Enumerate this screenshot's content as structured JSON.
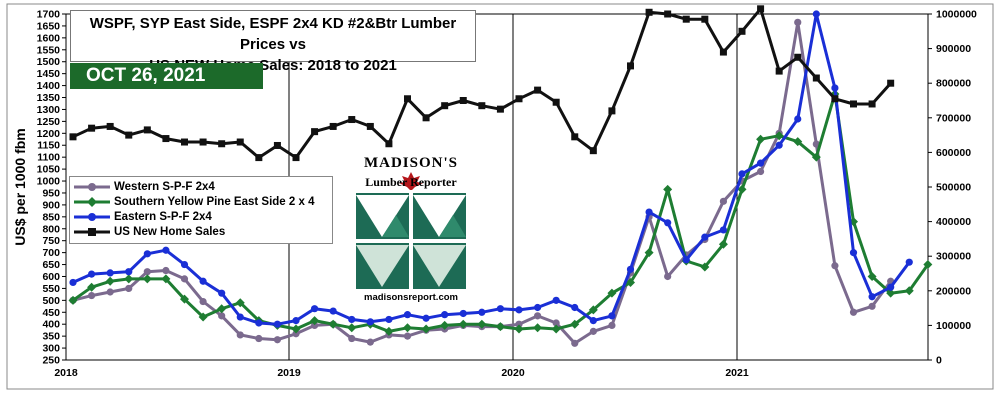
{
  "chart_data": {
    "type": "line",
    "title_line1": "WSPF, SYP East Side, ESPF 2x4 KD #2&Btr Lumber Prices vs",
    "title_line2": "US NEW Home Sales: 2018 to 2021",
    "date_label": "OCT 26, 2021",
    "ylabel": "US$ per 1000 fbm",
    "ylim": [
      250,
      1700
    ],
    "y2lim": [
      0,
      1000000
    ],
    "yticks": [
      "250",
      "300",
      "350",
      "400",
      "450",
      "500",
      "550",
      "600",
      "650",
      "700",
      "750",
      "800",
      "850",
      "900",
      "950",
      "1000",
      "1050",
      "1100",
      "1150",
      "1200",
      "1250",
      "1300",
      "1350",
      "1400",
      "1450",
      "1500",
      "1550",
      "1600",
      "1650",
      "1700"
    ],
    "y2ticks": [
      "0",
      "100000",
      "200000",
      "300000",
      "400000",
      "500000",
      "600000",
      "700000",
      "800000",
      "900000",
      "1000000"
    ],
    "xticks": [
      "2018",
      "2019",
      "2020",
      "2021"
    ],
    "grid": "vertical at year boundaries",
    "legend_placement": "left-middle",
    "series": [
      {
        "name": "Western S-P-F 2x4",
        "color": "#7b6a8e",
        "axis": "left",
        "values": [
          500,
          520,
          535,
          550,
          620,
          625,
          590,
          495,
          435,
          355,
          340,
          335,
          360,
          395,
          400,
          340,
          325,
          355,
          350,
          375,
          380,
          395,
          390,
          390,
          400,
          435,
          405,
          320,
          370,
          395,
          615,
          850,
          600,
          690,
          755,
          915,
          1000,
          1040,
          1200,
          1665,
          1155,
          645,
          450,
          475,
          580
        ]
      },
      {
        "name": "Southern Yellow Pine East Side 2 x 4",
        "color": "#1e7d32",
        "axis": "left",
        "values": [
          500,
          555,
          580,
          590,
          590,
          590,
          505,
          430,
          465,
          490,
          415,
          395,
          380,
          415,
          400,
          385,
          400,
          370,
          385,
          380,
          395,
          400,
          400,
          390,
          380,
          385,
          380,
          400,
          460,
          530,
          575,
          700,
          965,
          665,
          640,
          735,
          965,
          1175,
          1190,
          1165,
          1100,
          1365,
          830,
          600,
          530,
          540,
          650
        ]
      },
      {
        "name": "Eastern  S-P-F 2x4",
        "color": "#1a2fd6",
        "axis": "left",
        "values": [
          575,
          610,
          615,
          620,
          695,
          710,
          650,
          580,
          530,
          430,
          405,
          400,
          415,
          465,
          455,
          420,
          410,
          420,
          440,
          425,
          440,
          445,
          450,
          465,
          460,
          470,
          500,
          470,
          415,
          435,
          630,
          870,
          825,
          670,
          765,
          795,
          1030,
          1075,
          1150,
          1260,
          1700,
          1390,
          700,
          515,
          555,
          660
        ]
      },
      {
        "name": "US New Home Sales",
        "color": "#111111",
        "axis": "right",
        "values": [
          645000,
          670000,
          675000,
          650000,
          665000,
          640000,
          630000,
          630000,
          625000,
          630000,
          585000,
          620000,
          585000,
          660000,
          675000,
          695000,
          675000,
          625000,
          755000,
          700000,
          735000,
          750000,
          735000,
          725000,
          755000,
          780000,
          745000,
          645000,
          605000,
          720000,
          850000,
          1005000,
          1000000,
          985000,
          985000,
          890000,
          950000,
          1015000,
          835000,
          875000,
          815000,
          755000,
          740000,
          740000,
          800000
        ]
      }
    ]
  },
  "legend": {
    "items": [
      "Western S-P-F 2x4",
      "Southern Yellow Pine East Side 2 x 4",
      "Eastern  S-P-F 2x4",
      "US New Home Sales"
    ]
  },
  "logo": {
    "name": "MADISON'S",
    "subtitle": "Lumber Reporter",
    "url": "madisonsreport.com"
  }
}
